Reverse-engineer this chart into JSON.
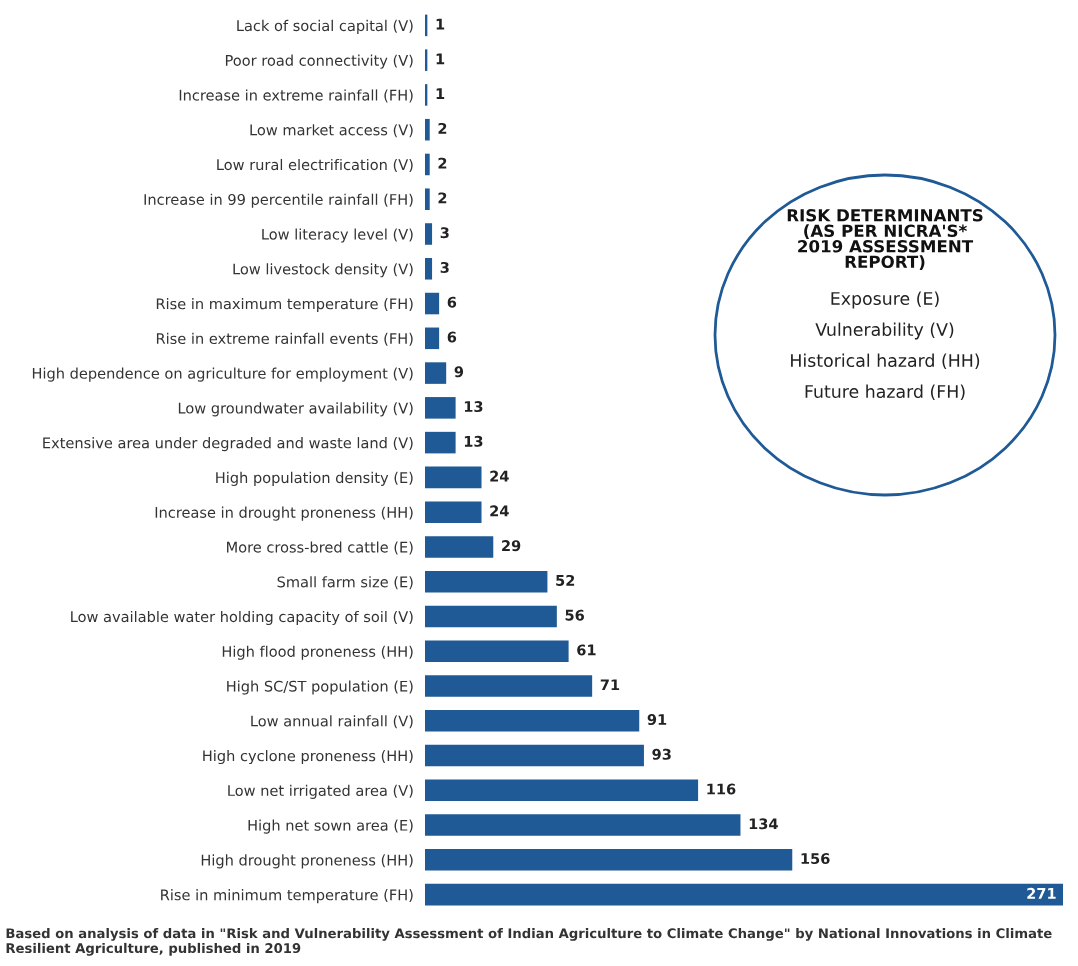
{
  "chart_data": {
    "type": "bar",
    "orientation": "horizontal",
    "categories": [
      "Lack of social capital (V)",
      "Poor road connectivity (V)",
      "Increase in extreme rainfall (FH)",
      "Low market access (V)",
      "Low rural electrification (V)",
      "Increase in 99 percentile rainfall (FH)",
      "Low literacy level (V)",
      "Low livestock density (V)",
      "Rise in maximum temperature (FH)",
      "Rise in extreme rainfall events (FH)",
      "High dependence on agriculture for employment (V)",
      "Low groundwater availability (V)",
      "Extensive area under degraded and waste land (V)",
      "High population density (E)",
      "Increase in drought proneness (HH)",
      "More cross-bred cattle (E)",
      "Small farm size (E)",
      "Low available water holding capacity of soil (V)",
      "High flood proneness (HH)",
      "High SC/ST population (E)",
      "Low annual rainfall (V)",
      "High cyclone proneness (HH)",
      "Low net irrigated area (V)",
      "High net sown area (E)",
      "High drought proneness (HH)",
      "Rise in minimum temperature (FH)"
    ],
    "values": [
      1,
      1,
      1,
      2,
      2,
      2,
      3,
      3,
      6,
      6,
      9,
      13,
      13,
      24,
      24,
      29,
      52,
      56,
      61,
      71,
      91,
      93,
      116,
      134,
      156,
      271
    ],
    "color": "#1f5a96",
    "data_labels": true,
    "annotations": [
      "RISK DETERMINANTS\n(AS PER NICRA'S*\n2019 ASSESSMENT\nREPORT)",
      "Exposure (E)",
      "Vulnerability (V)",
      "Historical hazard (HH)",
      "Future hazard (FH)",
      "Based on analysis of data in \"Risk and Vulnerability Assessment of Indian Agriculture to Climate Change\" by National Innovations in Climate Resilient Agriculture, published in 2019"
    ]
  }
}
